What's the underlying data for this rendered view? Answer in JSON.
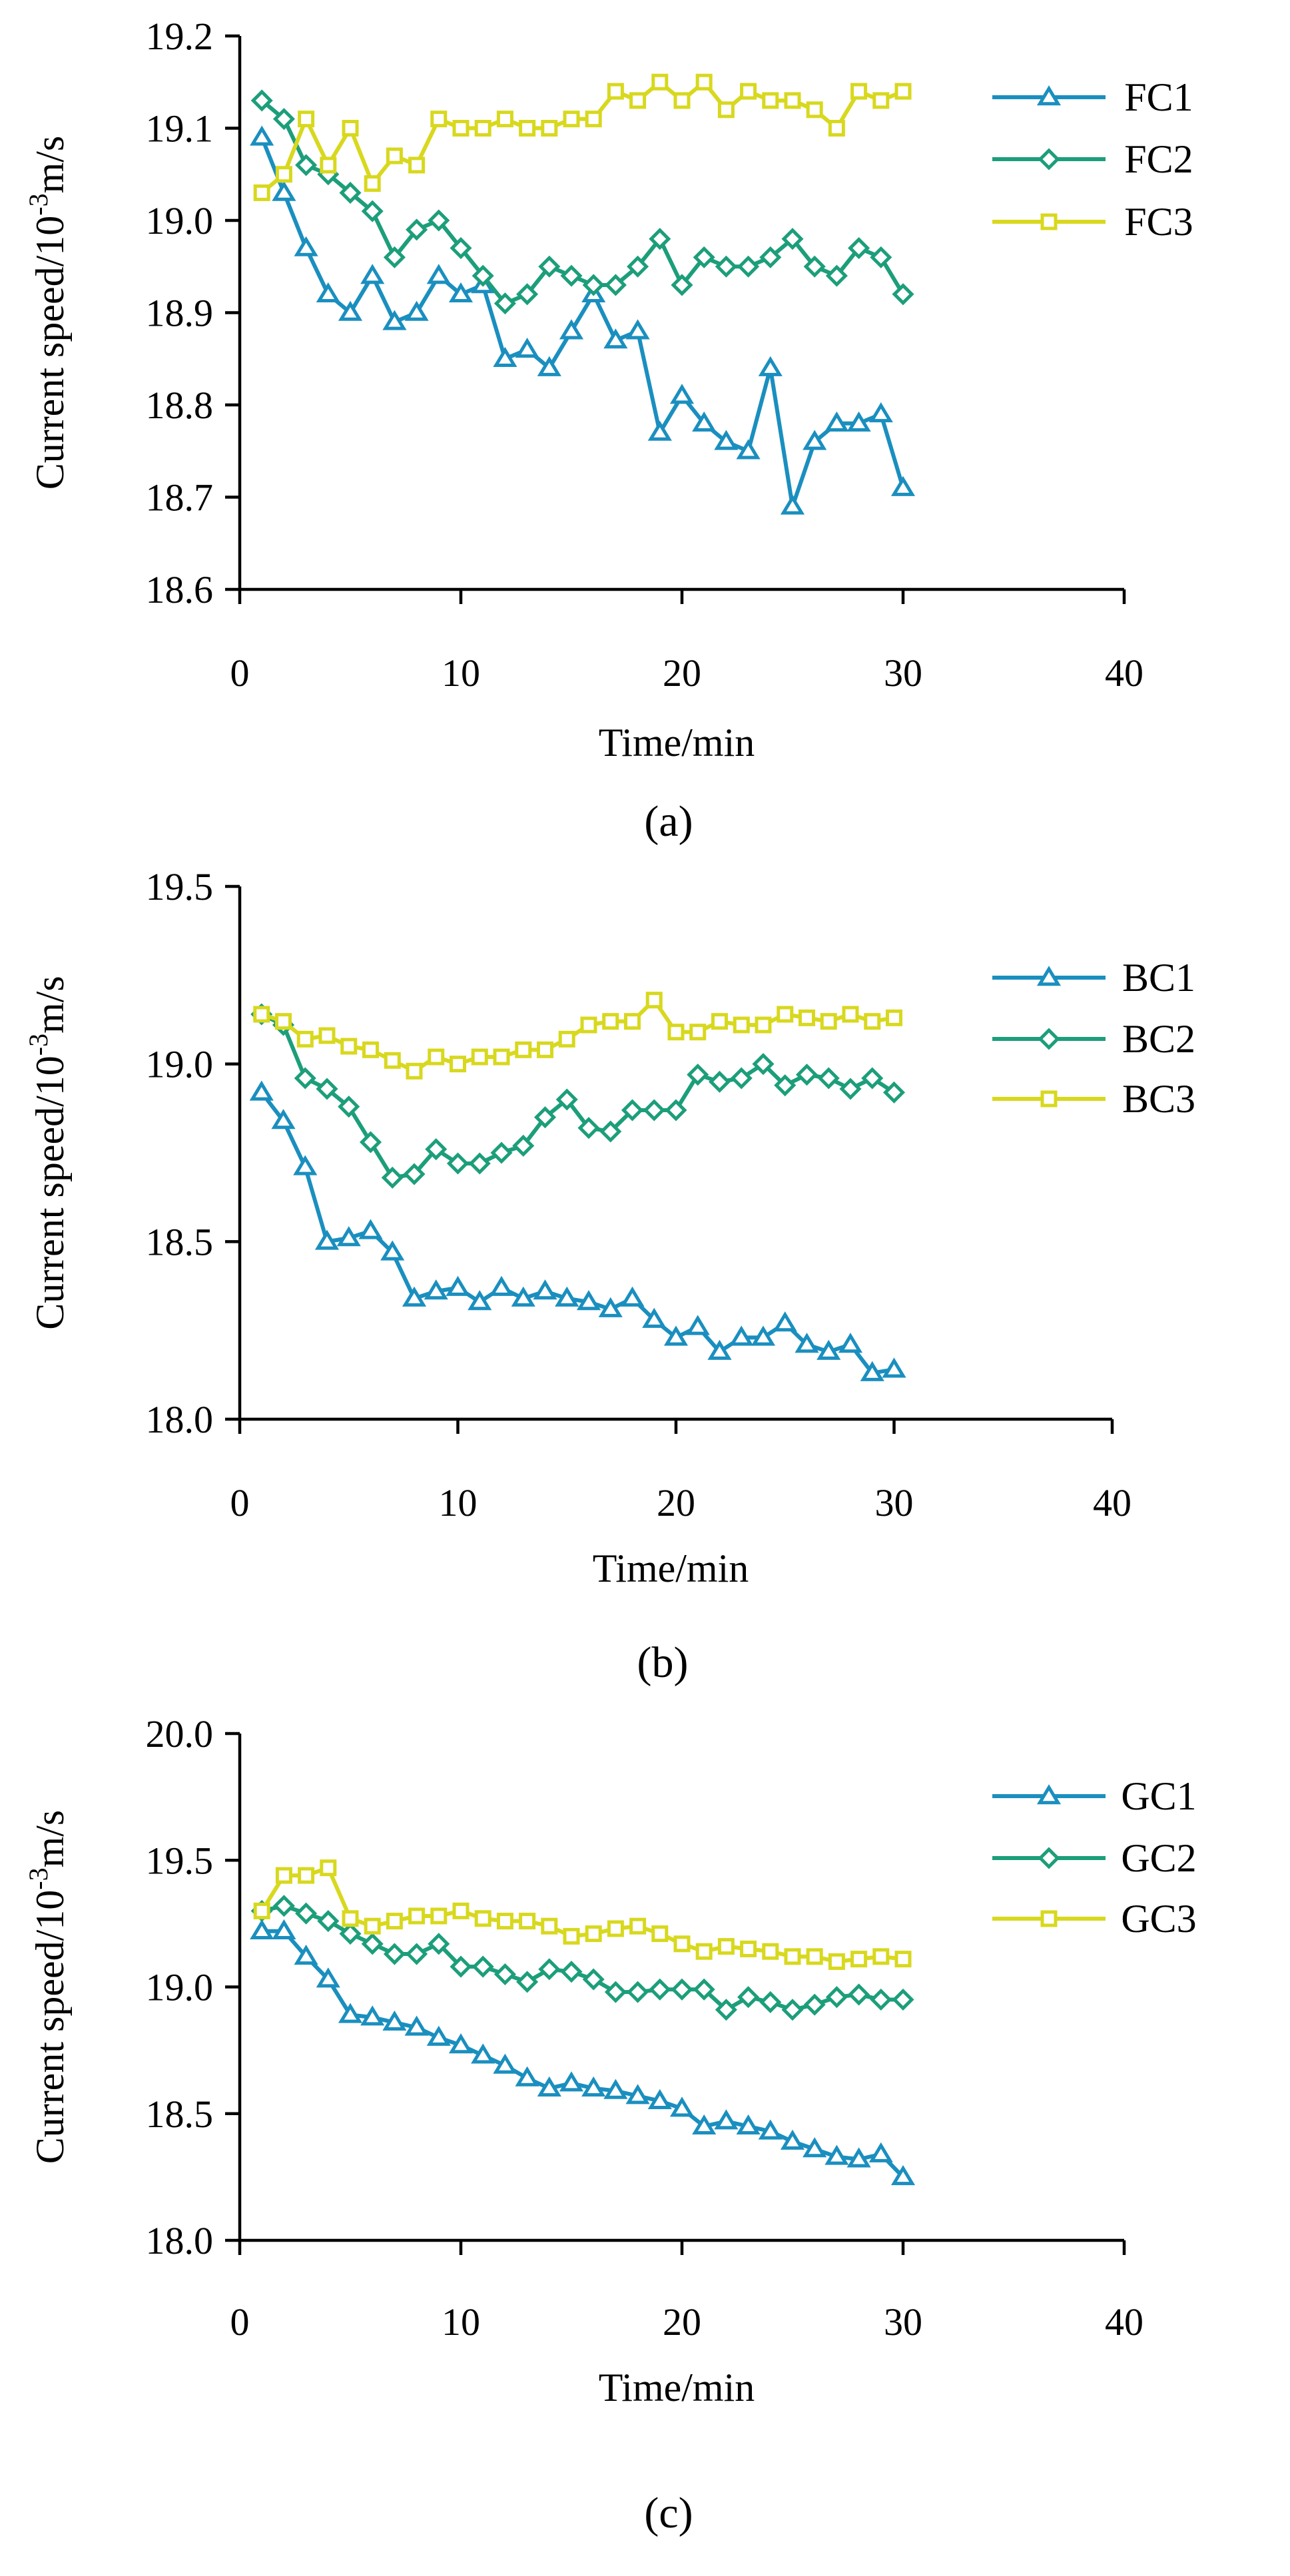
{
  "chart_data": [
    {
      "type": "line",
      "panel_label": "(a)",
      "xlabel": "Time/min",
      "ylabel": "Current speed/10-3m/s",
      "ylabel_main": "Current speed/10",
      "ylabel_exp": "-3",
      "ylabel_unit": "m/s",
      "xlim": [
        0,
        40
      ],
      "ylim": [
        18.6,
        19.2
      ],
      "xticks": [
        0,
        10,
        20,
        30,
        40
      ],
      "yticks": [
        18.6,
        18.7,
        18.8,
        18.9,
        19.0,
        19.1,
        19.2
      ],
      "xtick_labels": [
        "0",
        "10",
        "20",
        "30",
        "40"
      ],
      "ytick_labels": [
        "18.6",
        "18.7",
        "18.8",
        "18.9",
        "19.0",
        "19.1",
        "19.2"
      ],
      "legend_position": "top-right",
      "x": [
        1,
        2,
        3,
        4,
        5,
        6,
        7,
        8,
        9,
        10,
        11,
        12,
        13,
        14,
        15,
        16,
        17,
        18,
        19,
        20,
        21,
        22,
        23,
        24,
        25,
        26,
        27,
        28,
        29,
        30
      ],
      "series": [
        {
          "name": "FC1",
          "marker": "triangle",
          "color": "#1a8fbf",
          "values": [
            19.09,
            19.03,
            18.97,
            18.92,
            18.9,
            18.94,
            18.89,
            18.9,
            18.94,
            18.92,
            18.93,
            18.85,
            18.86,
            18.84,
            18.88,
            18.92,
            18.87,
            18.88,
            18.77,
            18.81,
            18.78,
            18.76,
            18.75,
            18.84,
            18.69,
            18.76,
            18.78,
            18.78,
            18.79,
            18.71
          ]
        },
        {
          "name": "FC2",
          "marker": "diamond",
          "color": "#1c9e7a",
          "values": [
            19.13,
            19.11,
            19.06,
            19.05,
            19.03,
            19.01,
            18.96,
            18.99,
            19.0,
            18.97,
            18.94,
            18.91,
            18.92,
            18.95,
            18.94,
            18.93,
            18.93,
            18.95,
            18.98,
            18.93,
            18.96,
            18.95,
            18.95,
            18.96,
            18.98,
            18.95,
            18.94,
            18.97,
            18.96,
            18.92
          ]
        },
        {
          "name": "FC3",
          "marker": "square",
          "color": "#d8d81e",
          "values": [
            19.03,
            19.05,
            19.11,
            19.06,
            19.1,
            19.04,
            19.07,
            19.06,
            19.11,
            19.1,
            19.1,
            19.11,
            19.1,
            19.1,
            19.11,
            19.11,
            19.14,
            19.13,
            19.15,
            19.13,
            19.15,
            19.12,
            19.14,
            19.13,
            19.13,
            19.12,
            19.1,
            19.14,
            19.13,
            19.14
          ]
        }
      ]
    },
    {
      "type": "line",
      "panel_label": "(b)",
      "xlabel": "Time/min",
      "ylabel": "Current speed/10-3m/s",
      "ylabel_main": "Current speed/10",
      "ylabel_exp": "-3",
      "ylabel_unit": "m/s",
      "xlim": [
        0,
        40
      ],
      "ylim": [
        18.0,
        19.5
      ],
      "xticks": [
        0,
        10,
        20,
        30,
        40
      ],
      "yticks": [
        18.0,
        18.5,
        19.0,
        19.5
      ],
      "xtick_labels": [
        "0",
        "10",
        "20",
        "30",
        "40"
      ],
      "ytick_labels": [
        "18.0",
        "18.5",
        "19.0",
        "19.5"
      ],
      "legend_position": "top-right",
      "x": [
        1,
        2,
        3,
        4,
        5,
        6,
        7,
        8,
        9,
        10,
        11,
        12,
        13,
        14,
        15,
        16,
        17,
        18,
        19,
        20,
        21,
        22,
        23,
        24,
        25,
        26,
        27,
        28,
        29,
        30
      ],
      "series": [
        {
          "name": "BC1",
          "marker": "triangle",
          "color": "#1a8fbf",
          "values": [
            18.92,
            18.84,
            18.71,
            18.5,
            18.51,
            18.53,
            18.47,
            18.34,
            18.36,
            18.37,
            18.33,
            18.37,
            18.34,
            18.36,
            18.34,
            18.33,
            18.31,
            18.34,
            18.28,
            18.23,
            18.26,
            18.19,
            18.23,
            18.23,
            18.27,
            18.21,
            18.19,
            18.21,
            18.13,
            18.14
          ]
        },
        {
          "name": "BC2",
          "marker": "diamond",
          "color": "#1c9e7a",
          "values": [
            19.14,
            19.11,
            18.96,
            18.93,
            18.88,
            18.78,
            18.68,
            18.69,
            18.76,
            18.72,
            18.72,
            18.75,
            18.77,
            18.85,
            18.9,
            18.82,
            18.81,
            18.87,
            18.87,
            18.87,
            18.97,
            18.95,
            18.96,
            19.0,
            18.94,
            18.97,
            18.96,
            18.93,
            18.96,
            18.92
          ]
        },
        {
          "name": "BC3",
          "marker": "square",
          "color": "#d8d81e",
          "values": [
            19.14,
            19.12,
            19.07,
            19.08,
            19.05,
            19.04,
            19.01,
            18.98,
            19.02,
            19.0,
            19.02,
            19.02,
            19.04,
            19.04,
            19.07,
            19.11,
            19.12,
            19.12,
            19.18,
            19.09,
            19.09,
            19.12,
            19.11,
            19.11,
            19.14,
            19.13,
            19.12,
            19.14,
            19.12,
            19.13
          ]
        }
      ]
    },
    {
      "type": "line",
      "panel_label": "(c)",
      "xlabel": "Time/min",
      "ylabel": "Current speed/10-3m/s",
      "ylabel_main": "Current speed/10",
      "ylabel_exp": "-3",
      "ylabel_unit": "m/s",
      "xlim": [
        0,
        40
      ],
      "ylim": [
        18.0,
        20.0
      ],
      "xticks": [
        0,
        10,
        20,
        30,
        40
      ],
      "yticks": [
        18.0,
        18.5,
        19.0,
        19.5,
        20.0
      ],
      "xtick_labels": [
        "0",
        "10",
        "20",
        "30",
        "40"
      ],
      "ytick_labels": [
        "18.0",
        "18.5",
        "19.0",
        "19.5",
        "20.0"
      ],
      "legend_position": "top-right",
      "x": [
        1,
        2,
        3,
        4,
        5,
        6,
        7,
        8,
        9,
        10,
        11,
        12,
        13,
        14,
        15,
        16,
        17,
        18,
        19,
        20,
        21,
        22,
        23,
        24,
        25,
        26,
        27,
        28,
        29,
        30
      ],
      "series": [
        {
          "name": "GC1",
          "marker": "triangle",
          "color": "#1a8fbf",
          "values": [
            19.22,
            19.22,
            19.12,
            19.03,
            18.89,
            18.88,
            18.86,
            18.84,
            18.8,
            18.77,
            18.73,
            18.69,
            18.64,
            18.6,
            18.62,
            18.6,
            18.59,
            18.57,
            18.55,
            18.52,
            18.45,
            18.47,
            18.45,
            18.43,
            18.39,
            18.36,
            18.33,
            18.32,
            18.34,
            18.25
          ]
        },
        {
          "name": "GC2",
          "marker": "diamond",
          "color": "#1c9e7a",
          "values": [
            19.3,
            19.32,
            19.29,
            19.26,
            19.21,
            19.17,
            19.13,
            19.13,
            19.17,
            19.08,
            19.08,
            19.05,
            19.02,
            19.07,
            19.06,
            19.03,
            18.98,
            18.98,
            18.99,
            18.99,
            18.99,
            18.91,
            18.96,
            18.94,
            18.91,
            18.93,
            18.96,
            18.97,
            18.95,
            18.95
          ]
        },
        {
          "name": "GC3",
          "marker": "square",
          "color": "#d8d81e",
          "values": [
            19.3,
            19.44,
            19.44,
            19.47,
            19.27,
            19.24,
            19.26,
            19.28,
            19.28,
            19.3,
            19.27,
            19.26,
            19.26,
            19.24,
            19.2,
            19.21,
            19.23,
            19.24,
            19.21,
            19.17,
            19.14,
            19.16,
            19.15,
            19.14,
            19.12,
            19.12,
            19.1,
            19.11,
            19.12,
            19.11
          ]
        }
      ]
    }
  ]
}
